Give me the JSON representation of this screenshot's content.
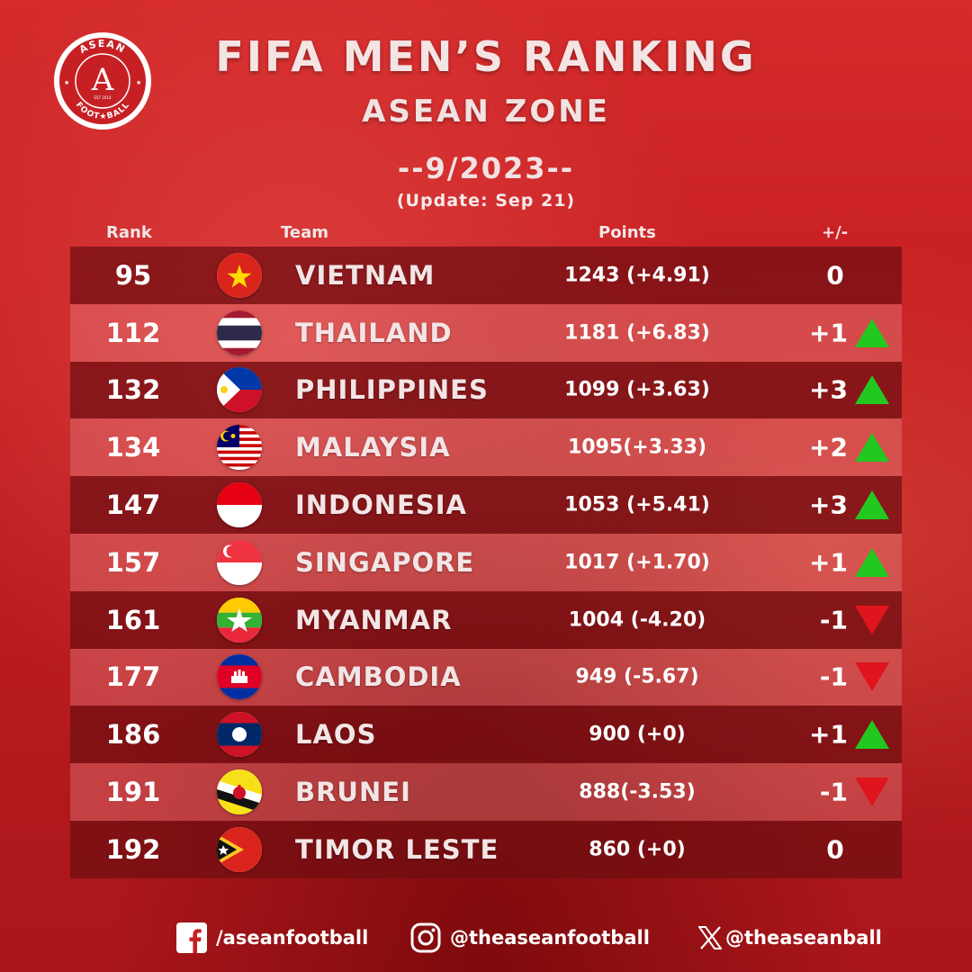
{
  "header": {
    "title": "FIFA MEN’S RANKING",
    "subtitle": "ASEAN ZONE",
    "period": "--9/2023--",
    "update": "(Update: Sep 21)"
  },
  "logo": {
    "top_text": "ASEAN",
    "bottom_text": "FOOT★BALL",
    "letter": "A",
    "est": "EST 2014"
  },
  "columns": {
    "rank": "Rank",
    "team": "Team",
    "points": "Points",
    "diff": "+/-"
  },
  "rows": [
    {
      "rank": "95",
      "team": "VIETNAM",
      "points": "1243 (+4.91)",
      "diff": "0",
      "trend": "none",
      "flag": "vietnam-flag"
    },
    {
      "rank": "112",
      "team": "THAILAND",
      "points": "1181 (+6.83)",
      "diff": "+1",
      "trend": "up",
      "flag": "thailand-flag"
    },
    {
      "rank": "132",
      "team": "PHILIPPINES",
      "points": "1099 (+3.63)",
      "diff": "+3",
      "trend": "up",
      "flag": "philippines-flag"
    },
    {
      "rank": "134",
      "team": "MALAYSIA",
      "points": "1095(+3.33)",
      "diff": "+2",
      "trend": "up",
      "flag": "malaysia-flag"
    },
    {
      "rank": "147",
      "team": "INDONESIA",
      "points": "1053 (+5.41)",
      "diff": "+3",
      "trend": "up",
      "flag": "indonesia-flag"
    },
    {
      "rank": "157",
      "team": "SINGAPORE",
      "points": "1017 (+1.70)",
      "diff": "+1",
      "trend": "up",
      "flag": "singapore-flag"
    },
    {
      "rank": "161",
      "team": "MYANMAR",
      "points": "1004 (-4.20)",
      "diff": "-1",
      "trend": "down",
      "flag": "myanmar-flag"
    },
    {
      "rank": "177",
      "team": "CAMBODIA",
      "points": "949 (-5.67)",
      "diff": "-1",
      "trend": "down",
      "flag": "cambodia-flag"
    },
    {
      "rank": "186",
      "team": "LAOS",
      "points": "900 (+0)",
      "diff": "+1",
      "trend": "up",
      "flag": "laos-flag"
    },
    {
      "rank": "191",
      "team": "BRUNEI",
      "points": "888(-3.53)",
      "diff": "-1",
      "trend": "down",
      "flag": "brunei-flag"
    },
    {
      "rank": "192",
      "team": "TIMOR LESTE",
      "points": "860 (+0)",
      "diff": "0",
      "trend": "none",
      "flag": "timor-leste-flag"
    }
  ],
  "colors": {
    "up": "#22c81f",
    "down": "#e0141c",
    "row_dark": "#6e0e12",
    "background": "#c81f23"
  },
  "footer": {
    "facebook": {
      "icon": "facebook-icon",
      "label": "/aseanfootball"
    },
    "instagram": {
      "icon": "instagram-icon",
      "label": "@theaseanfootball"
    },
    "x": {
      "icon": "x-icon",
      "label": "@theaseanball"
    }
  }
}
